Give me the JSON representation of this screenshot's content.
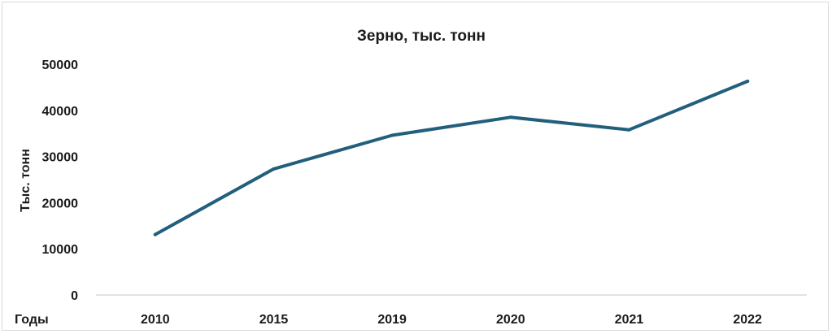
{
  "chart_data": {
    "type": "line",
    "title": "Зерно, тыс. тонн",
    "ylabel": "Тыс. тонн",
    "xlabel": "Годы",
    "categories": [
      "2010",
      "2015",
      "2019",
      "2020",
      "2021",
      "2022"
    ],
    "series": [
      {
        "values": [
          13100,
          27300,
          34600,
          38500,
          35800,
          46300
        ],
        "color": "#225f7d"
      }
    ],
    "ylim": [
      0,
      50000
    ],
    "yticks": [
      "0",
      "10000",
      "20000",
      "30000",
      "40000",
      "50000"
    ],
    "grid": false,
    "legend": "none"
  }
}
